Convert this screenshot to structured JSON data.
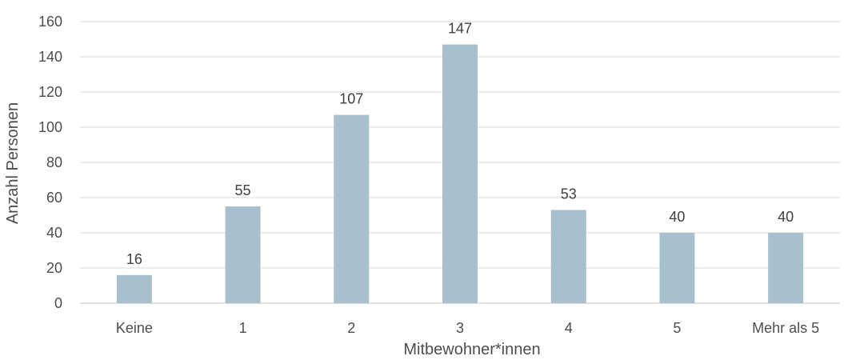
{
  "chart_data": {
    "type": "bar",
    "title": "",
    "xlabel": "Mitbewohner*innen",
    "ylabel": "Anzahl Personen",
    "categories": [
      "Keine",
      "1",
      "2",
      "3",
      "4",
      "5",
      "Mehr als 5"
    ],
    "values": [
      16,
      55,
      107,
      147,
      53,
      40,
      40
    ],
    "ylim": [
      0,
      160
    ],
    "yticks": [
      0,
      20,
      40,
      60,
      80,
      100,
      120,
      140,
      160
    ],
    "grid": true,
    "legend": "none",
    "data_labels": true,
    "colors": {
      "bar": "#a8bfcc",
      "grid": "#d9d9d9",
      "axis": "#bfbfbf",
      "text": "#4d4d4d"
    }
  }
}
